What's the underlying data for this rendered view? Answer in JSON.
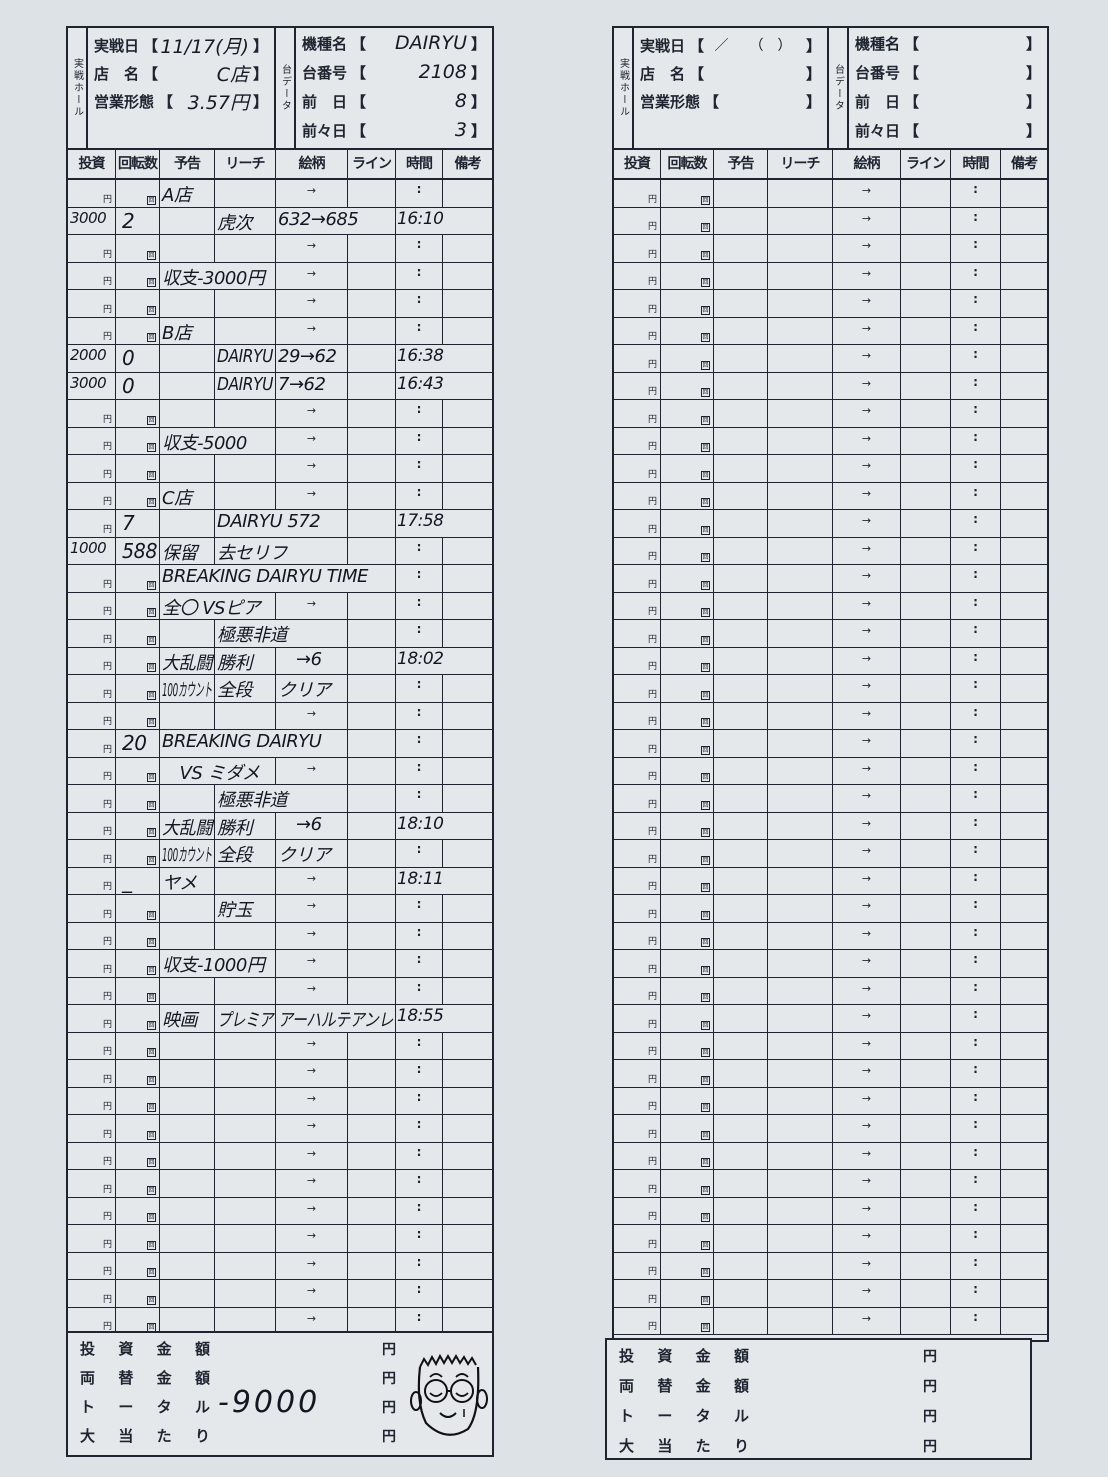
{
  "labels": {
    "hall_vertical": "実戦ホール",
    "data_vertical": "台データ",
    "date": "実戦日",
    "shop": "店　名",
    "business": "営業形態",
    "machine": "機種名",
    "unit_no": "台番号",
    "prev_day": "前　日",
    "prev2_day": "前々日",
    "open_br": "【",
    "close_br": "】",
    "date_blank": "／　　（　）",
    "columns": [
      "投資",
      "回転数",
      "予告",
      "リーチ",
      "絵柄",
      "ライン",
      "時間",
      "備考"
    ],
    "yen": "円",
    "kai": "回",
    "arrow": "→",
    "colon": ":",
    "summary": [
      [
        "投",
        "資",
        "金",
        "額"
      ],
      [
        "両",
        "替",
        "金",
        "額"
      ],
      [
        "ト",
        "ー",
        "タ",
        "ル"
      ],
      [
        "大",
        "当",
        "た",
        "り"
      ]
    ]
  },
  "left_form": {
    "date": "11/17(月)",
    "shop": "C店",
    "business": "3.57円",
    "machine": "DAIRYU",
    "unit_no": "2108",
    "prev_day": "8",
    "prev2_day": "3",
    "rows": [
      {
        "yokoku": "A店"
      },
      {
        "inv": "3000",
        "rot": "2",
        "reach": "虎次",
        "egara": "632→685",
        "time": "16:10"
      },
      {},
      {
        "yokoku": "収支-3000円"
      },
      {},
      {
        "yokoku": "B店"
      },
      {
        "inv": "2000",
        "rot": "0",
        "reach": "DAIRYU",
        "egara": "29→62",
        "time": "16:38"
      },
      {
        "inv": "3000",
        "rot": "0",
        "reach": "DAIRYU",
        "egara": "7→62",
        "time": "16:43"
      },
      {},
      {
        "yokoku": "収支-5000"
      },
      {},
      {
        "yokoku": "C店"
      },
      {
        "rot": "7",
        "reach": "DAIRYU 572",
        "time": "17:58"
      },
      {
        "inv": "1000",
        "rot": "588",
        "yokoku": "保留",
        "reach": "去セリフ"
      },
      {
        "yokoku": "BREAKING DAIRYU TIME"
      },
      {
        "yokoku": "全〇 VSピア"
      },
      {
        "reach": "極悪非道"
      },
      {
        "yokoku": "大乱闘",
        "reach": "勝利",
        "egara": "→6",
        "time": "18:02"
      },
      {
        "yokoku": "100カウント",
        "reach": "全段",
        "egara": "クリア"
      },
      {},
      {
        "rot": "20",
        "yokoku": "BREAKING DAIRYU"
      },
      {
        "yokoku": "　VS ミダメ"
      },
      {
        "reach": "極悪非道"
      },
      {
        "yokoku": "大乱闘",
        "reach": "勝利",
        "egara": "→6",
        "time": "18:10"
      },
      {
        "yokoku": "100カウント",
        "reach": "全段",
        "egara": "クリア"
      },
      {
        "rot": "_",
        "yokoku": "ヤメ",
        "time": "18:11"
      },
      {
        "reach": "貯玉"
      },
      {},
      {
        "yokoku": "収支-1000円"
      },
      {},
      {
        "yokoku": "映画",
        "reach": "プレミア",
        "egara": "アーハルテアンレ",
        "time": "18:55"
      },
      {},
      {},
      {},
      {},
      {},
      {},
      {},
      {},
      {},
      {},
      {}
    ],
    "summary_values": [
      "",
      "",
      "-9000",
      ""
    ]
  },
  "right_form": {
    "row_count": 42
  }
}
